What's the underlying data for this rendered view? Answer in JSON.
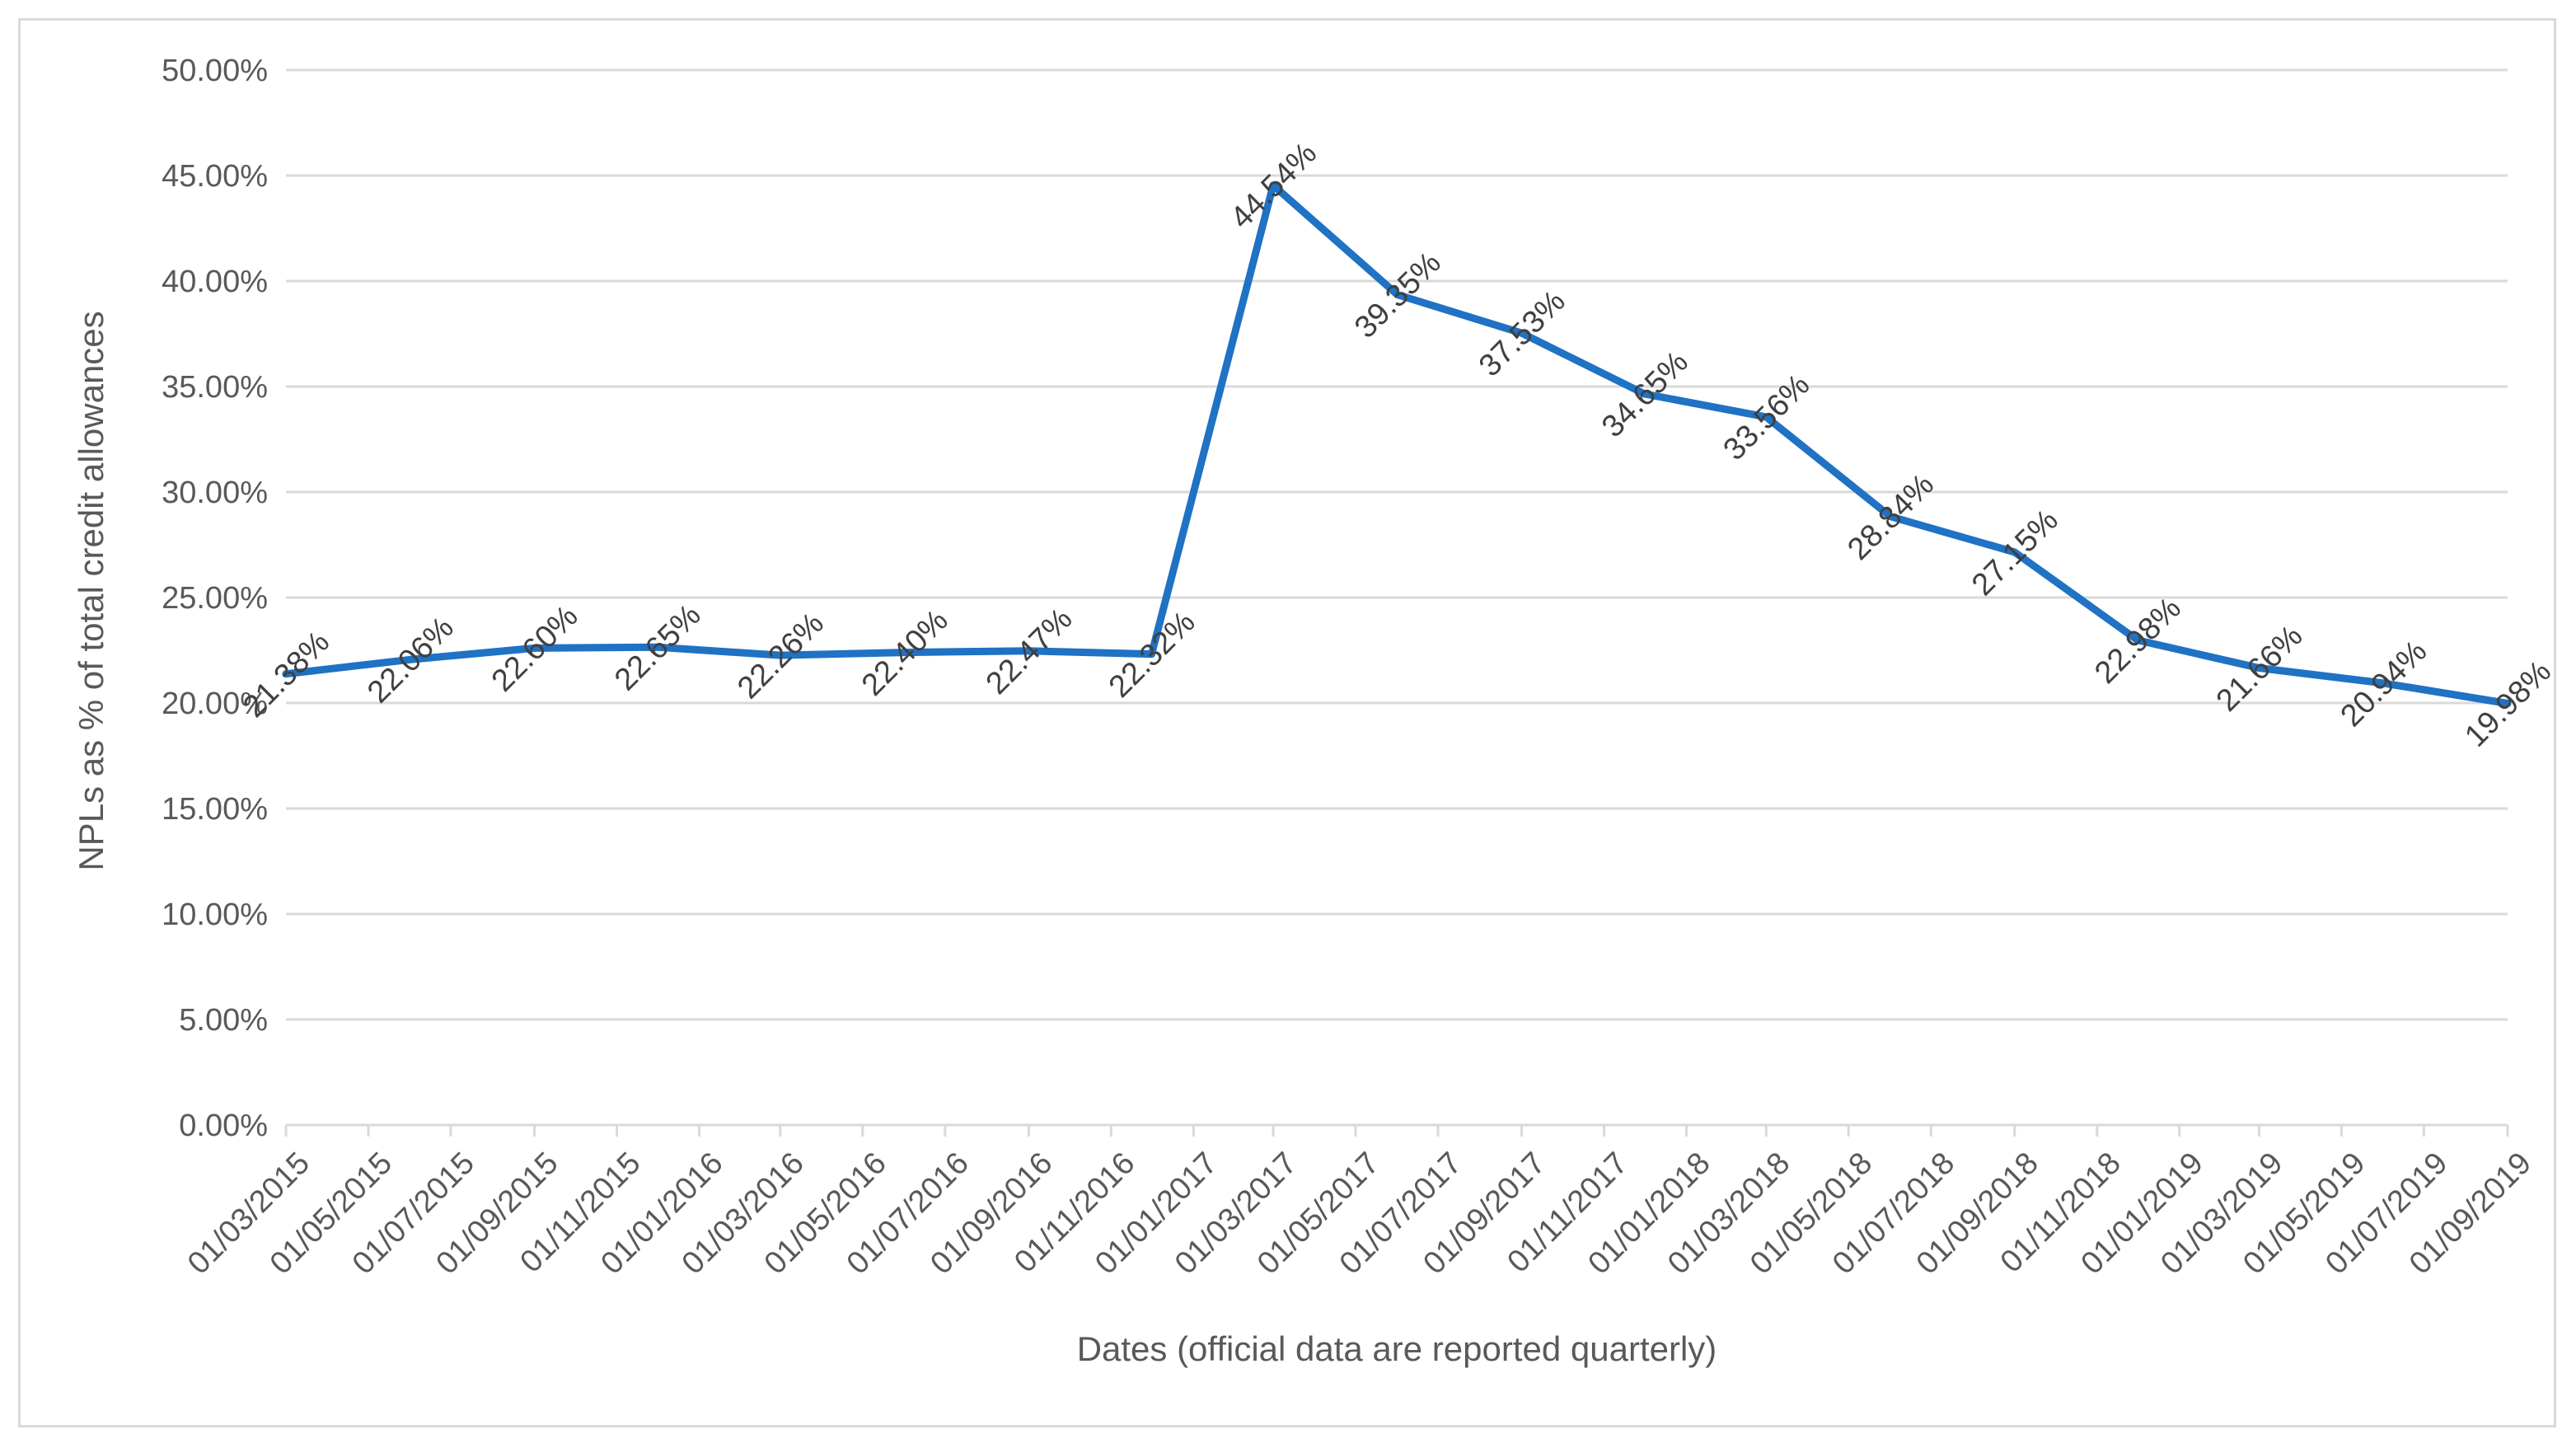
{
  "chart_data": {
    "type": "line",
    "x": [
      "01/03/2015",
      "01/05/2015",
      "01/07/2015",
      "01/09/2015",
      "01/11/2015",
      "01/01/2016",
      "01/03/2016",
      "01/05/2016",
      "01/07/2016",
      "01/09/2016",
      "01/11/2016",
      "01/01/2017",
      "01/03/2017",
      "01/05/2017",
      "01/07/2017",
      "01/09/2017",
      "01/11/2017",
      "01/01/2018",
      "01/03/2018",
      "01/05/2018",
      "01/07/2018",
      "01/09/2018",
      "01/11/2018",
      "01/01/2019",
      "01/03/2019",
      "01/05/2019",
      "01/07/2019",
      "01/09/2019"
    ],
    "series": [
      {
        "points": [
          {
            "x": "01/03/2015",
            "y": 21.38,
            "label": "21.38%"
          },
          {
            "x": "01/06/2015",
            "y": 22.06,
            "label": "22.06%"
          },
          {
            "x": "01/09/2015",
            "y": 22.6,
            "label": "22.60%"
          },
          {
            "x": "01/12/2015",
            "y": 22.65,
            "label": "22.65%"
          },
          {
            "x": "01/03/2016",
            "y": 22.26,
            "label": "22.26%"
          },
          {
            "x": "01/06/2016",
            "y": 22.4,
            "label": "22.40%"
          },
          {
            "x": "01/09/2016",
            "y": 22.47,
            "label": "22.47%"
          },
          {
            "x": "01/12/2016",
            "y": 22.32,
            "label": "22.32%"
          },
          {
            "x": "01/03/2017",
            "y": 44.54,
            "label": "44.54%"
          },
          {
            "x": "01/06/2017",
            "y": 39.35,
            "label": "39.35%"
          },
          {
            "x": "01/09/2017",
            "y": 37.53,
            "label": "37.53%"
          },
          {
            "x": "01/12/2017",
            "y": 34.65,
            "label": "34.65%"
          },
          {
            "x": "01/03/2018",
            "y": 33.56,
            "label": "33.56%"
          },
          {
            "x": "01/06/2018",
            "y": 28.84,
            "label": "28.84%"
          },
          {
            "x": "01/09/2018",
            "y": 27.15,
            "label": "27.15%"
          },
          {
            "x": "01/12/2018",
            "y": 22.98,
            "label": "22.98%"
          },
          {
            "x": "01/03/2019",
            "y": 21.66,
            "label": "21.66%"
          },
          {
            "x": "01/06/2019",
            "y": 20.94,
            "label": "20.94%"
          },
          {
            "x": "01/09/2019",
            "y": 19.98,
            "label": "19.98%"
          }
        ],
        "color": "#1f72c4"
      }
    ],
    "ylabel": "NPLs as % of total credit allowances",
    "xlabel": "Dates (official data are reported quarterly)",
    "ylim": [
      0,
      50
    ],
    "yticks": [
      0,
      5,
      10,
      15,
      20,
      25,
      30,
      35,
      40,
      45,
      50
    ],
    "ytick_labels": [
      "0.00%",
      "5.00%",
      "10.00%",
      "15.00%",
      "20.00%",
      "25.00%",
      "30.00%",
      "35.00%",
      "40.00%",
      "45.00%",
      "50.00%"
    ],
    "xlim": [
      "01/03/2015",
      "01/09/2019"
    ],
    "grid": true,
    "legend": "none"
  }
}
